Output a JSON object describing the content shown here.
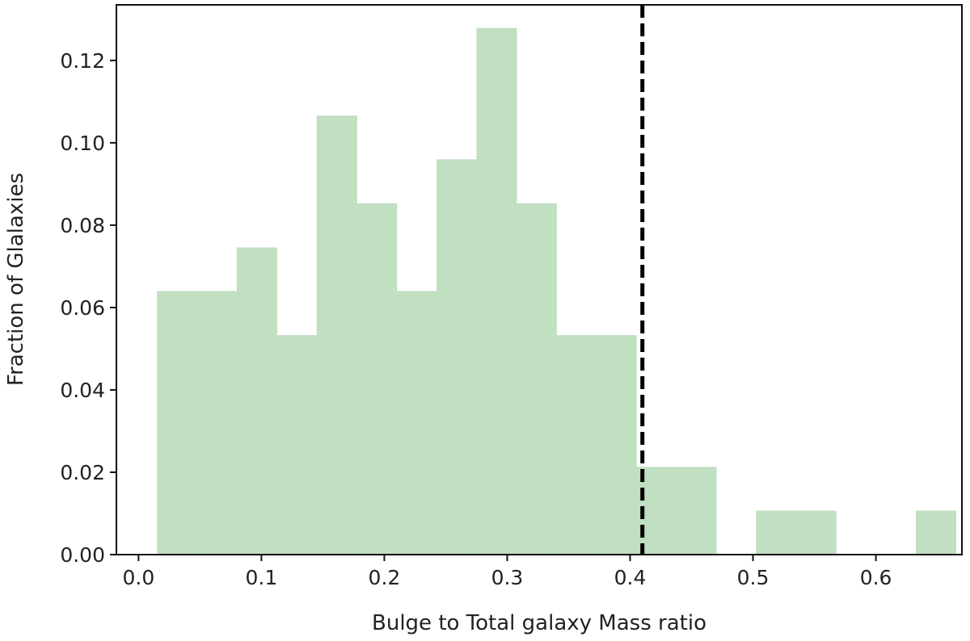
{
  "chart_data": {
    "type": "bar",
    "subtype": "histogram",
    "title": "",
    "xlabel": "Bulge to Total galaxy Mass ratio",
    "ylabel": "Fraction of Glalaxies",
    "xlim": [
      -0.018,
      0.67
    ],
    "ylim": [
      0,
      0.1335
    ],
    "xticks": [
      0.0,
      0.1,
      0.2,
      0.3,
      0.4,
      0.5,
      0.6
    ],
    "xtick_labels": [
      "0.0",
      "0.1",
      "0.2",
      "0.3",
      "0.4",
      "0.5",
      "0.6"
    ],
    "yticks": [
      0.0,
      0.02,
      0.04,
      0.06,
      0.08,
      0.1,
      0.12
    ],
    "ytick_labels": [
      "0.00",
      "0.02",
      "0.04",
      "0.06",
      "0.08",
      "0.10",
      "0.12"
    ],
    "bar_color": "#c1dfc1",
    "grid": false,
    "bins": [
      {
        "x0": 0.015,
        "x1": 0.0475,
        "value": 0.064
      },
      {
        "x0": 0.0475,
        "x1": 0.08,
        "value": 0.064
      },
      {
        "x0": 0.08,
        "x1": 0.1125,
        "value": 0.0746
      },
      {
        "x0": 0.1125,
        "x1": 0.145,
        "value": 0.0533
      },
      {
        "x0": 0.145,
        "x1": 0.1775,
        "value": 0.1066
      },
      {
        "x0": 0.1775,
        "x1": 0.21,
        "value": 0.0853
      },
      {
        "x0": 0.21,
        "x1": 0.2425,
        "value": 0.064
      },
      {
        "x0": 0.2425,
        "x1": 0.275,
        "value": 0.096
      },
      {
        "x0": 0.275,
        "x1": 0.3075,
        "value": 0.1279
      },
      {
        "x0": 0.3075,
        "x1": 0.34,
        "value": 0.0853
      },
      {
        "x0": 0.34,
        "x1": 0.3725,
        "value": 0.0533
      },
      {
        "x0": 0.3725,
        "x1": 0.405,
        "value": 0.0533
      },
      {
        "x0": 0.405,
        "x1": 0.4375,
        "value": 0.0213
      },
      {
        "x0": 0.4375,
        "x1": 0.47,
        "value": 0.0213
      },
      {
        "x0": 0.47,
        "x1": 0.5025,
        "value": 0.0
      },
      {
        "x0": 0.5025,
        "x1": 0.535,
        "value": 0.0107
      },
      {
        "x0": 0.535,
        "x1": 0.5675,
        "value": 0.0107
      },
      {
        "x0": 0.5675,
        "x1": 0.6,
        "value": 0.0
      },
      {
        "x0": 0.6,
        "x1": 0.6325,
        "value": 0.0
      },
      {
        "x0": 0.6325,
        "x1": 0.665,
        "value": 0.0107
      }
    ],
    "reference_line": {
      "x": 0.41,
      "style": "dashed",
      "color": "#000000"
    }
  }
}
